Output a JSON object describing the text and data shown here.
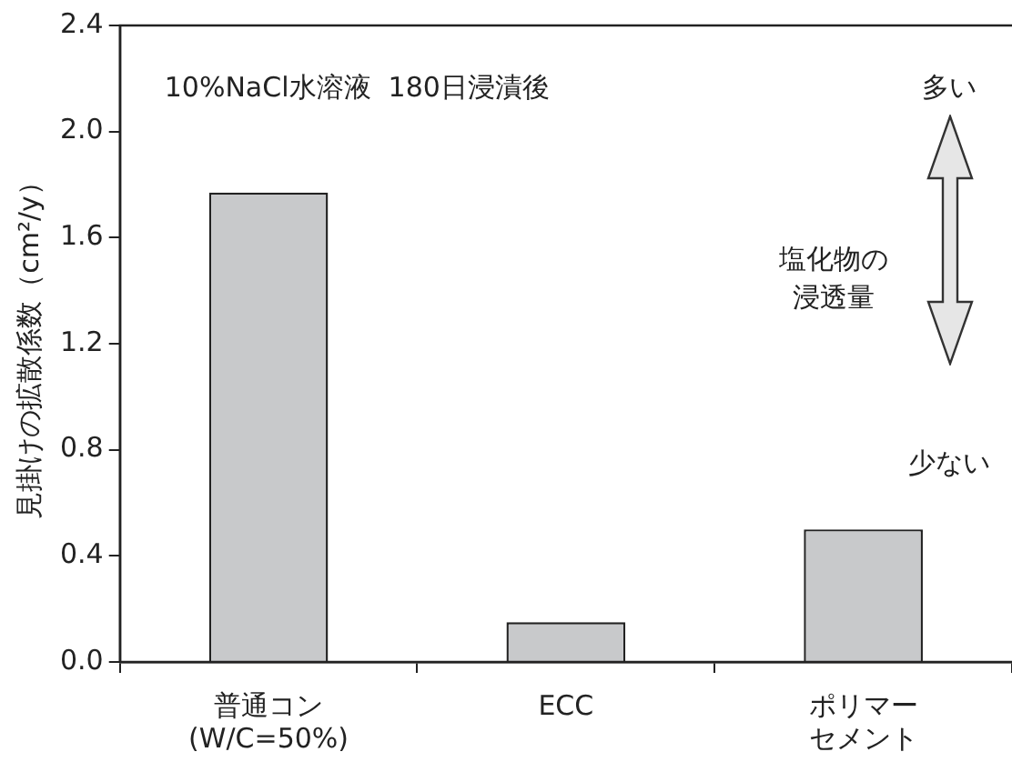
{
  "chart_data": {
    "type": "bar",
    "categories": [
      "普通コン\n(W/C=50%)",
      "ECC",
      "ポリマーセメント"
    ],
    "values": [
      1.77,
      0.15,
      0.5
    ],
    "color": "#c8c9cb",
    "ylabel": "見掛けの拡散係数（cm²/y）",
    "ylim": [
      0,
      2.4
    ],
    "yticks": [
      {
        "value": 0,
        "label": "0.0"
      },
      {
        "value": 0.4,
        "label": "0.4"
      },
      {
        "value": 0.8,
        "label": "0.8"
      },
      {
        "value": 1.2,
        "label": "1.2"
      },
      {
        "value": 1.6,
        "label": "1.6"
      },
      {
        "value": 2,
        "label": "2.0"
      },
      {
        "value": 2.4,
        "label": "2.4"
      }
    ],
    "grid": false,
    "legend": false,
    "annotations": [
      "10%NaCl水溶液  180日浸漬後",
      "多い",
      "塩化物の浸透量",
      "少ない"
    ]
  }
}
